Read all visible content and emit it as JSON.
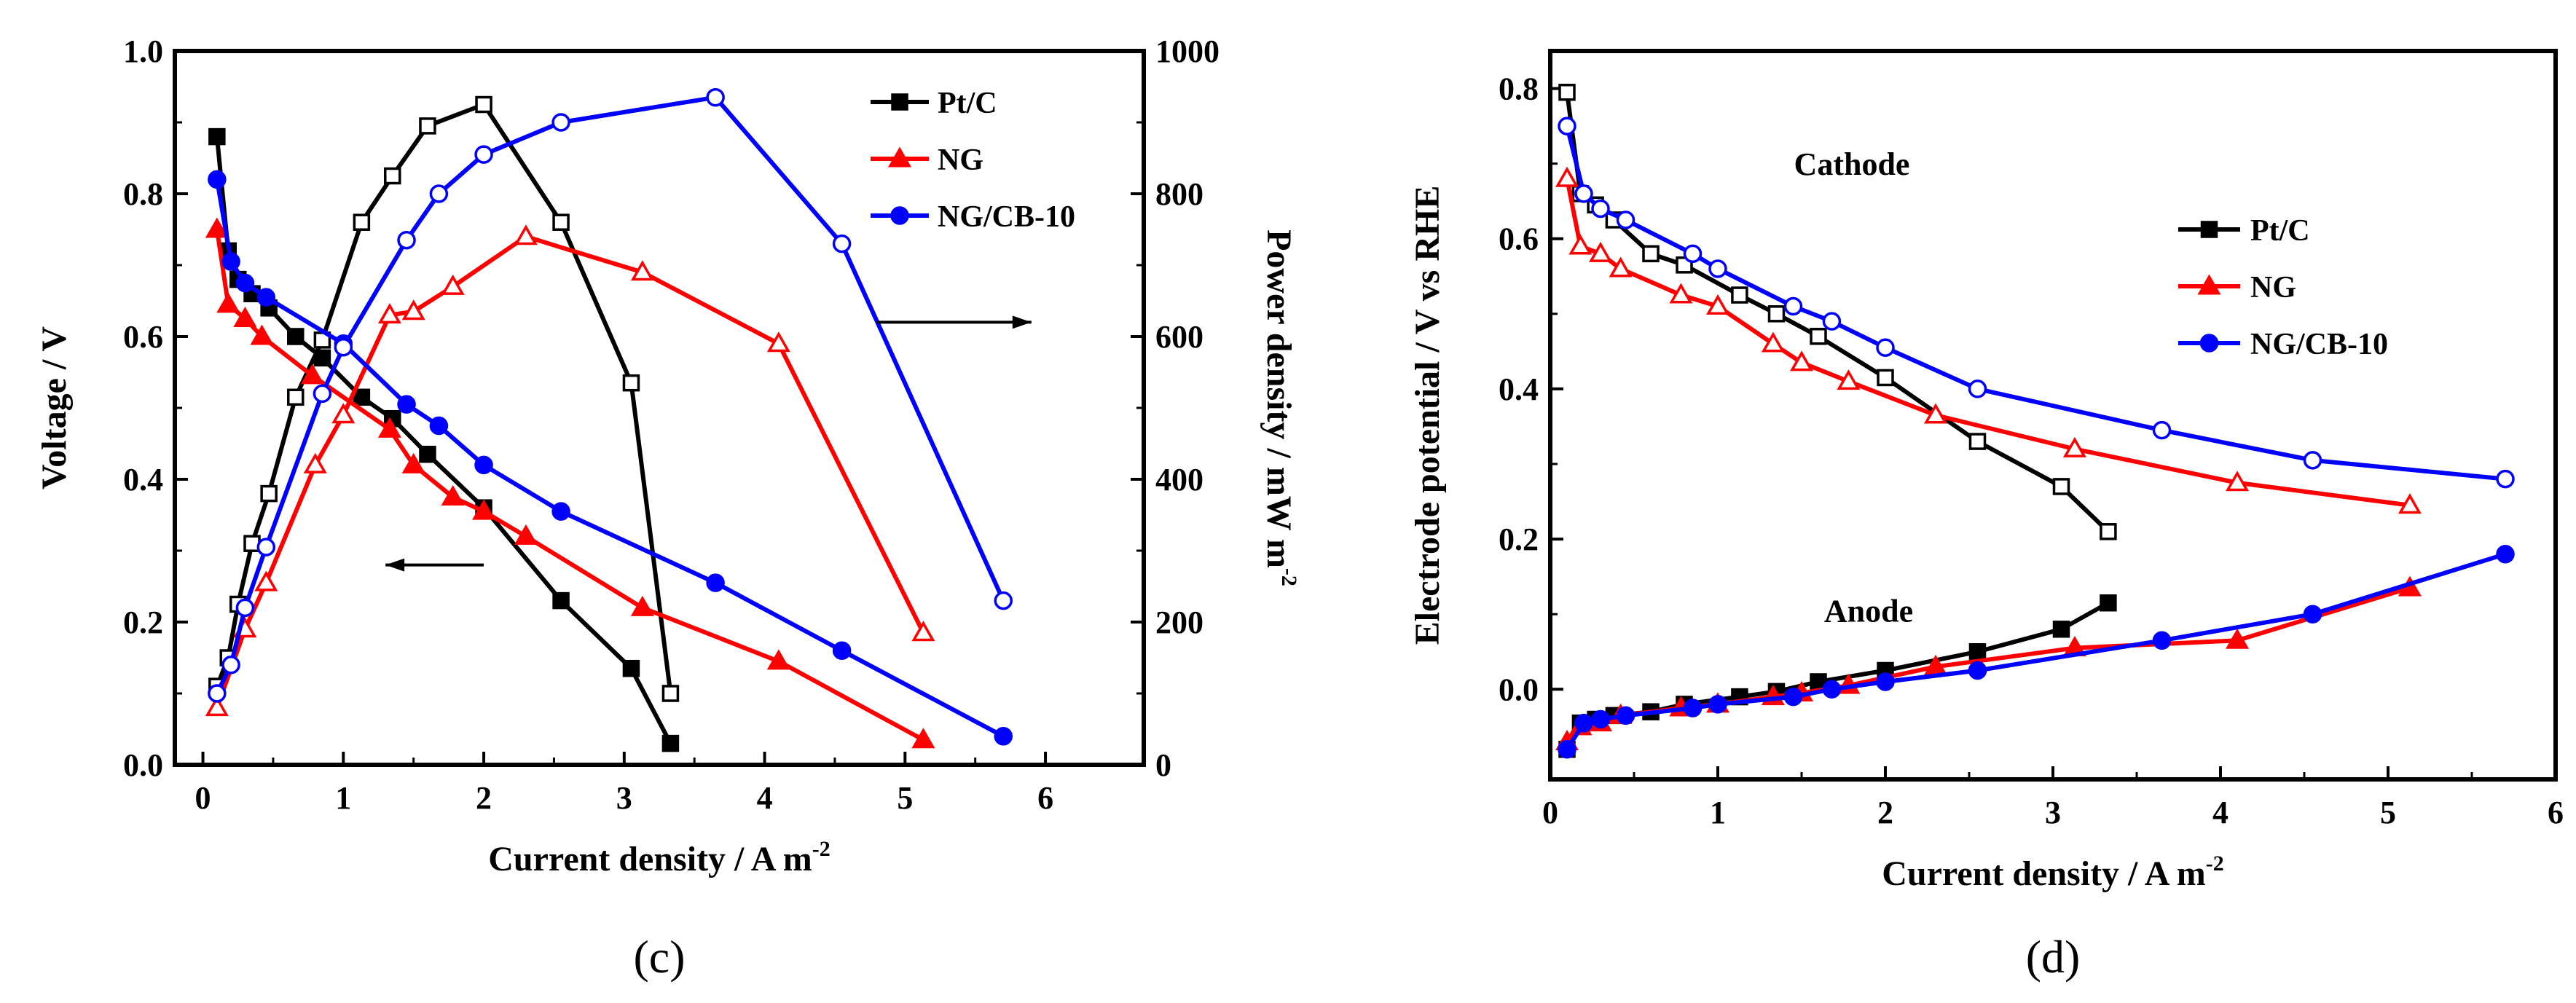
{
  "chart_data": [
    {
      "panel": "(c)",
      "type": "line",
      "xlabel": "Current density / A m",
      "xlabel_sup": "-2",
      "ylabel": "Voltage / V",
      "y2label": "Power density /  mW m",
      "y2label_sup": "-2",
      "xlim": [
        -0.2,
        6.7
      ],
      "ylim": [
        0,
        1.0
      ],
      "y2lim": [
        0,
        1000
      ],
      "xticks": [
        "0",
        "1",
        "2",
        "3",
        "4",
        "5",
        "6"
      ],
      "yticks": [
        "0.0",
        "0.2",
        "0.4",
        "0.6",
        "0.8",
        "1.0"
      ],
      "y2ticks": [
        "0",
        "200",
        "400",
        "600",
        "800",
        "1000"
      ],
      "legend": [
        "Pt/C",
        "NG",
        "NG/CB-10"
      ],
      "colors": [
        "#000000",
        "#ff0000",
        "#0000ff"
      ],
      "series": [
        {
          "name": "Pt/C",
          "axis": "left",
          "marker": "filled-square",
          "x": [
            0.1,
            0.18,
            0.25,
            0.35,
            0.47,
            0.66,
            0.85,
            1.13,
            1.35,
            1.6,
            2.0,
            2.55,
            3.05,
            3.33
          ],
          "y": [
            0.88,
            0.72,
            0.68,
            0.66,
            0.64,
            0.6,
            0.57,
            0.515,
            0.485,
            0.435,
            0.36,
            0.23,
            0.135,
            0.03
          ]
        },
        {
          "name": "Pt/C",
          "axis": "right",
          "marker": "open-square",
          "x": [
            0.1,
            0.18,
            0.25,
            0.35,
            0.47,
            0.66,
            0.85,
            1.13,
            1.35,
            1.6,
            2.0,
            2.55,
            3.05,
            3.33
          ],
          "y": [
            110,
            150,
            225,
            310,
            380,
            515,
            595,
            760,
            825,
            895,
            925,
            760,
            535,
            100
          ]
        },
        {
          "name": "NG",
          "axis": "left",
          "marker": "filled-triangle",
          "x": [
            0.1,
            0.18,
            0.3,
            0.42,
            0.78,
            1.33,
            1.5,
            1.78,
            2.0,
            2.3,
            3.13,
            4.1,
            5.13
          ],
          "y": [
            0.75,
            0.645,
            0.625,
            0.6,
            0.545,
            0.47,
            0.42,
            0.375,
            0.355,
            0.32,
            0.22,
            0.145,
            0.035
          ]
        },
        {
          "name": "NG",
          "axis": "right",
          "marker": "open-triangle",
          "x": [
            0.1,
            0.3,
            0.45,
            0.8,
            1.0,
            1.33,
            1.5,
            1.78,
            2.3,
            3.13,
            4.1,
            5.13
          ],
          "y": [
            80,
            190,
            255,
            420,
            490,
            630,
            635,
            670,
            740,
            690,
            590,
            185
          ]
        },
        {
          "name": "NG/CB-10",
          "axis": "left",
          "marker": "filled-circle",
          "x": [
            0.1,
            0.2,
            0.3,
            0.45,
            1.0,
            1.45,
            1.68,
            2.0,
            2.55,
            3.65,
            4.55,
            5.7
          ],
          "y": [
            0.82,
            0.705,
            0.675,
            0.655,
            0.59,
            0.505,
            0.475,
            0.42,
            0.355,
            0.255,
            0.16,
            0.04
          ]
        },
        {
          "name": "NG/CB-10",
          "axis": "right",
          "marker": "open-circle",
          "x": [
            0.1,
            0.2,
            0.3,
            0.45,
            0.85,
            1.0,
            1.45,
            1.68,
            2.0,
            2.55,
            3.65,
            4.55,
            5.7
          ],
          "y": [
            100,
            140,
            220,
            305,
            520,
            585,
            735,
            800,
            855,
            900,
            935,
            730,
            230
          ]
        }
      ],
      "annotations": [
        {
          "text": "",
          "description": "arrow pointing left",
          "x_start": 2.0,
          "x_end": 1.3,
          "y": 0.28
        },
        {
          "text": "",
          "description": "arrow pointing right",
          "x_start": 4.8,
          "x_end": 5.9,
          "y": 0.62
        }
      ]
    },
    {
      "panel": "(d)",
      "type": "line",
      "xlabel": "Current density / A m",
      "xlabel_sup": "-2",
      "ylabel": "Electrode potential / V vs RHE",
      "xlim": [
        0,
        6
      ],
      "ylim": [
        -0.12,
        0.85
      ],
      "xticks": [
        "0",
        "1",
        "2",
        "3",
        "4",
        "5",
        "6"
      ],
      "yticks": [
        "0.0",
        "0.2",
        "0.4",
        "0.6",
        "0.8"
      ],
      "legend": [
        "Pt/C",
        "NG",
        "NG/CB-10"
      ],
      "colors": [
        "#000000",
        "#ff0000",
        "#0000ff"
      ],
      "series": [
        {
          "name": "Pt/C",
          "role": "cathode",
          "marker": "open-square",
          "x": [
            0.1,
            0.18,
            0.27,
            0.38,
            0.6,
            0.8,
            1.13,
            1.35,
            1.6,
            2.0,
            2.55,
            3.05,
            3.33
          ],
          "y": [
            0.795,
            0.66,
            0.645,
            0.625,
            0.58,
            0.565,
            0.525,
            0.5,
            0.47,
            0.415,
            0.33,
            0.27,
            0.21
          ]
        },
        {
          "name": "Pt/C",
          "role": "anode",
          "marker": "filled-square",
          "x": [
            0.1,
            0.18,
            0.27,
            0.38,
            0.6,
            0.8,
            1.13,
            1.35,
            1.6,
            2.0,
            2.55,
            3.05,
            3.33
          ],
          "y": [
            -0.08,
            -0.045,
            -0.04,
            -0.035,
            -0.03,
            -0.02,
            -0.01,
            -0.003,
            0.01,
            0.025,
            0.05,
            0.08,
            0.115
          ]
        },
        {
          "name": "NG",
          "role": "cathode",
          "marker": "open-triangle",
          "x": [
            0.1,
            0.18,
            0.3,
            0.42,
            0.78,
            1.0,
            1.33,
            1.5,
            1.78,
            2.3,
            3.13,
            4.1,
            5.13
          ],
          "y": [
            0.68,
            0.59,
            0.58,
            0.56,
            0.525,
            0.51,
            0.46,
            0.435,
            0.41,
            0.365,
            0.32,
            0.275,
            0.245
          ]
        },
        {
          "name": "NG",
          "role": "anode",
          "marker": "filled-triangle",
          "x": [
            0.1,
            0.18,
            0.3,
            0.42,
            0.78,
            1.0,
            1.33,
            1.5,
            1.78,
            2.3,
            3.13,
            4.1,
            5.13
          ],
          "y": [
            -0.07,
            -0.05,
            -0.045,
            -0.035,
            -0.025,
            -0.02,
            -0.01,
            -0.005,
            0.005,
            0.03,
            0.055,
            0.065,
            0.135
          ]
        },
        {
          "name": "NG/CB-10",
          "role": "cathode",
          "marker": "open-circle",
          "x": [
            0.1,
            0.2,
            0.3,
            0.45,
            0.85,
            1.0,
            1.45,
            1.68,
            2.0,
            2.55,
            3.65,
            4.55,
            5.7
          ],
          "y": [
            0.75,
            0.66,
            0.64,
            0.625,
            0.58,
            0.56,
            0.51,
            0.49,
            0.455,
            0.4,
            0.345,
            0.305,
            0.28
          ]
        },
        {
          "name": "NG/CB-10",
          "role": "anode",
          "marker": "filled-circle",
          "x": [
            0.1,
            0.2,
            0.3,
            0.45,
            0.85,
            1.0,
            1.45,
            1.68,
            2.0,
            2.55,
            3.65,
            4.55,
            5.7
          ],
          "y": [
            -0.08,
            -0.045,
            -0.04,
            -0.035,
            -0.025,
            -0.02,
            -0.01,
            0.0,
            0.01,
            0.025,
            0.065,
            0.1,
            0.18
          ]
        }
      ],
      "annotations": [
        {
          "text": "Cathode",
          "x": 1.8,
          "y": 0.685
        },
        {
          "text": "Anode",
          "x": 1.9,
          "y": 0.09
        }
      ]
    }
  ]
}
